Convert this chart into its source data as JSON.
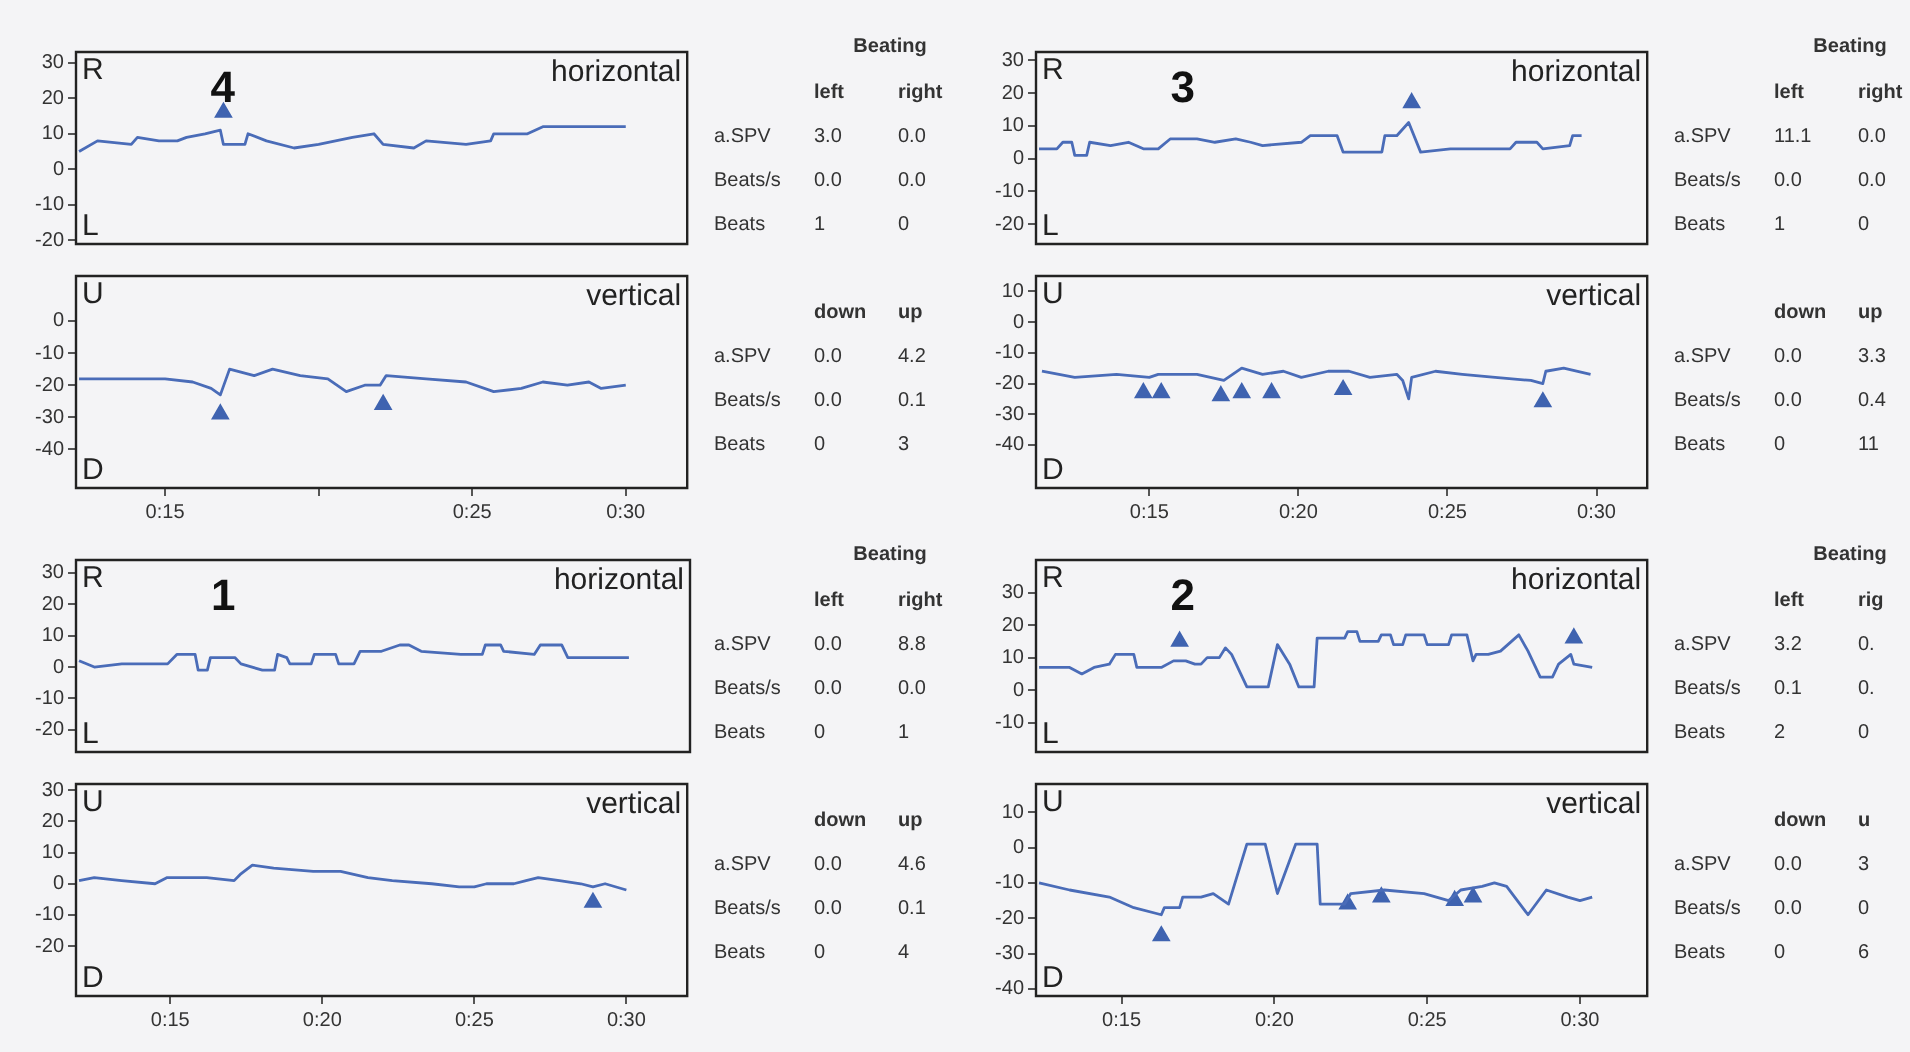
{
  "chart_data": [
    {
      "type": "line",
      "xlim": [
        12.1,
        32
      ],
      "ylim": [
        -21,
        33
      ],
      "yticks": [
        -20,
        -10,
        0,
        10,
        20,
        30
      ],
      "tick_labels": "y",
      "annotations": [
        "R",
        "L",
        "horizontal",
        "4"
      ],
      "series": [
        {
          "color": "#4a6cb8",
          "x": [
            12.2,
            12.8,
            13.9,
            14.1,
            14.8,
            15.4,
            15.7,
            16.3,
            16.8,
            16.9,
            17.6,
            17.7,
            18.3,
            19.2,
            20.0,
            21.1,
            21.8,
            22.1,
            23.1,
            23.5,
            24.8,
            25.6,
            25.7,
            26.8,
            27.3,
            30.0
          ],
          "values": [
            5,
            8,
            7,
            9,
            8,
            8,
            9,
            10,
            11,
            7,
            7,
            10,
            8,
            6,
            7,
            9,
            10,
            7,
            6,
            8,
            7,
            8,
            10,
            10,
            12,
            12
          ]
        },
        {
          "type": "scatter",
          "marker": "triangle",
          "color": "#3f63b0",
          "x": [
            16.9
          ],
          "values": [
            16
          ]
        }
      ]
    },
    {
      "type": "line",
      "xlim": [
        12.1,
        32
      ],
      "ylim": [
        -52,
        14
      ],
      "yticks": [
        -40,
        -30,
        -20,
        -10,
        0
      ],
      "xticks": [
        {
          "value": 15,
          "label": "0:15"
        },
        {
          "value": 20,
          "label": null
        },
        {
          "value": 25,
          "label": "0:25"
        },
        {
          "value": 30,
          "label": "0:30"
        }
      ],
      "annotations": [
        "U",
        "D",
        "vertical"
      ],
      "series": [
        {
          "color": "#4a6cb8",
          "x": [
            12.2,
            13.9,
            15,
            15.9,
            16.5,
            16.8,
            17.1,
            17.9,
            18.5,
            19.4,
            20.3,
            20.9,
            21.5,
            22.0,
            22.2,
            23.5,
            24.8,
            25.7,
            26.6,
            27.3,
            28.1,
            28.8,
            29.2,
            30.0
          ],
          "values": [
            -18,
            -18,
            -18,
            -19,
            -21,
            -23,
            -15,
            -17,
            -15,
            -17,
            -18,
            -22,
            -20,
            -20,
            -17,
            -18,
            -19,
            -22,
            -21,
            -19,
            -20,
            -19,
            -21,
            -20
          ]
        },
        {
          "type": "scatter",
          "marker": "triangle",
          "color": "#3f63b0",
          "x": [
            16.8,
            22.1
          ],
          "values": [
            -29,
            -26
          ]
        }
      ]
    },
    {
      "type": "other",
      "title": "Beating",
      "annotations": [
        "left",
        "right",
        "a.SPV",
        "3.0",
        "0.0",
        "Beats/s",
        "0.0",
        "0.0",
        "Beats",
        "1",
        "0",
        "down",
        "up",
        "a.SPV",
        "0.0",
        "4.2",
        "Beats/s",
        "0.0",
        "0.1",
        "Beats",
        "0",
        "3"
      ]
    },
    {
      "type": "line",
      "xlim": [
        11.2,
        31.7
      ],
      "ylim": [
        -26,
        32.5
      ],
      "yticks": [
        -20,
        -10,
        0,
        10,
        20,
        30
      ],
      "tick_labels": "y",
      "annotations": [
        "R",
        "L",
        "horizontal",
        "3"
      ],
      "series": [
        {
          "color": "#4a6cb8",
          "x": [
            11.3,
            11.9,
            12.1,
            12.4,
            12.5,
            12.9,
            13.0,
            13.7,
            14.3,
            14.8,
            15.3,
            15.7,
            16.6,
            17.2,
            17.9,
            18.4,
            18.8,
            20.1,
            20.4,
            21.3,
            21.5,
            22.8,
            22.9,
            23.3,
            23.7,
            24.1,
            25.1,
            26.0,
            27.1,
            27.3,
            28.0,
            28.2,
            29.1,
            29.2,
            29.5
          ],
          "values": [
            3,
            3,
            5,
            5,
            1,
            1,
            5,
            4,
            5,
            3,
            3,
            6,
            6,
            5,
            6,
            5,
            4,
            5,
            7,
            7,
            2,
            2,
            7,
            7,
            11,
            2,
            3,
            3,
            3,
            5,
            5,
            3,
            4,
            7,
            7
          ]
        },
        {
          "type": "scatter",
          "marker": "triangle",
          "color": "#3f63b0",
          "x": [
            23.8
          ],
          "values": [
            17
          ]
        }
      ]
    },
    {
      "type": "line",
      "xlim": [
        11.2,
        31.7
      ],
      "ylim": [
        -54,
        15
      ],
      "yticks": [
        -40,
        -30,
        -20,
        -10,
        0,
        10
      ],
      "xticks": [
        {
          "value": 15,
          "label": "0:15"
        },
        {
          "value": 20,
          "label": "0:20"
        },
        {
          "value": 25,
          "label": "0:25"
        },
        {
          "value": 30,
          "label": "0:30"
        }
      ],
      "annotations": [
        "U",
        "D",
        "vertical"
      ],
      "series": [
        {
          "color": "#4a6cb8",
          "x": [
            11.4,
            12.5,
            13.9,
            15,
            15.3,
            16.6,
            17.5,
            18.1,
            18.8,
            19.5,
            20.1,
            21.0,
            21.7,
            22.4,
            23.3,
            23.5,
            23.7,
            23.8,
            24.6,
            25.5,
            26.6,
            27.8,
            28.2,
            28.3,
            28.9,
            29.8
          ],
          "values": [
            -16,
            -18,
            -17,
            -18,
            -17,
            -17,
            -19,
            -15,
            -17,
            -16,
            -18,
            -16,
            -16,
            -18,
            -17,
            -19,
            -25,
            -18,
            -16,
            -17,
            -18,
            -19,
            -20,
            -16,
            -15,
            -17
          ]
        },
        {
          "type": "scatter",
          "marker": "triangle",
          "color": "#3f63b0",
          "x": [
            14.8,
            15.4,
            17.4,
            18.1,
            19.1,
            21.5,
            28.2
          ],
          "values": [
            -23,
            -23,
            -24,
            -23,
            -23,
            -22,
            -26
          ]
        }
      ]
    },
    {
      "type": "other",
      "title": "Beating",
      "annotations": [
        "left",
        "right",
        "a.SPV",
        "11.1",
        "0.0",
        "Beats/s",
        "0.0",
        "0.0",
        "Beats",
        "1",
        "0",
        "down",
        "up",
        "a.SPV",
        "0.0",
        "3.3",
        "Beats/s",
        "0.0",
        "0.4",
        "Beats",
        "0",
        "11"
      ]
    },
    {
      "type": "line",
      "xlim": [
        11.9,
        32
      ],
      "ylim": [
        -27,
        34
      ],
      "yticks": [
        -20,
        -10,
        0,
        10,
        20,
        30
      ],
      "tick_labels": "y",
      "annotations": [
        "R",
        "L",
        "horizontal",
        "1"
      ],
      "series": [
        {
          "color": "#4a6cb8",
          "x": [
            12.0,
            12.5,
            13.4,
            14.0,
            14.9,
            15.2,
            15.8,
            15.9,
            16.2,
            16.3,
            17.1,
            17.3,
            18.0,
            18.4,
            18.5,
            18.8,
            18.9,
            19.6,
            19.7,
            20.4,
            20.5,
            21.0,
            21.2,
            21.9,
            22.5,
            22.8,
            23.2,
            24.5,
            25.2,
            25.3,
            25.8,
            25.9,
            26.9,
            27.1,
            27.8,
            28.0,
            30.0
          ],
          "values": [
            2,
            0,
            1,
            1,
            1,
            4,
            4,
            -1,
            -1,
            3,
            3,
            1,
            -1,
            -1,
            4,
            3,
            1,
            1,
            4,
            4,
            1,
            1,
            5,
            5,
            7,
            7,
            5,
            4,
            4,
            7,
            7,
            5,
            4,
            7,
            7,
            3,
            3
          ]
        }
      ]
    },
    {
      "type": "line",
      "xlim": [
        11.9,
        32
      ],
      "ylim": [
        -36,
        32
      ],
      "yticks": [
        -20,
        -10,
        0,
        10,
        20,
        30
      ],
      "xticks": [
        {
          "value": 15,
          "label": "0:15"
        },
        {
          "value": 20,
          "label": "0:20"
        },
        {
          "value": 25,
          "label": "0:25"
        },
        {
          "value": 30,
          "label": "0:30"
        }
      ],
      "annotations": [
        "U",
        "D",
        "vertical"
      ],
      "series": [
        {
          "color": "#4a6cb8",
          "x": [
            12.0,
            12.5,
            13.4,
            14.5,
            14.9,
            16.2,
            17.1,
            17.3,
            17.7,
            18.4,
            19.7,
            20.6,
            21.5,
            22.3,
            23.6,
            24.5,
            25.0,
            25.4,
            26.3,
            26.7,
            27.1,
            27.8,
            28.5,
            28.9,
            29.3,
            30.0
          ],
          "values": [
            1,
            2,
            1,
            0,
            2,
            2,
            1,
            3,
            6,
            5,
            4,
            4,
            2,
            1,
            0,
            -1,
            -1,
            0,
            0,
            1,
            2,
            1,
            0,
            -1,
            0,
            -2
          ]
        },
        {
          "type": "scatter",
          "marker": "triangle",
          "color": "#3f63b0",
          "x": [
            28.9
          ],
          "values": [
            -6
          ]
        }
      ]
    },
    {
      "type": "other",
      "title": "Beating",
      "annotations": [
        "left",
        "right",
        "a.SPV",
        "0.0",
        "8.8",
        "Beats/s",
        "0.0",
        "0.0",
        "Beats",
        "0",
        "1",
        "down",
        "up",
        "a.SPV",
        "0.0",
        "4.6",
        "Beats/s",
        "0.0",
        "0.1",
        "Beats",
        "0",
        "4"
      ]
    },
    {
      "type": "line",
      "xlim": [
        12.2,
        32.2
      ],
      "ylim": [
        -19,
        40
      ],
      "yticks": [
        -10,
        0,
        10,
        20,
        30
      ],
      "tick_labels": "y",
      "annotations": [
        "R",
        "L",
        "horizontal",
        "2"
      ],
      "series": [
        {
          "color": "#4a6cb8",
          "x": [
            12.3,
            13.3,
            13.7,
            14.1,
            14.6,
            14.8,
            15.4,
            15.5,
            16.3,
            16.7,
            17.1,
            17.4,
            17.6,
            17.8,
            18.2,
            18.4,
            18.6,
            18.9,
            19.1,
            19.8,
            20.1,
            20.5,
            20.8,
            21.3,
            21.4,
            22.3,
            22.4,
            22.7,
            22.8,
            23.4,
            23.5,
            23.8,
            23.9,
            24.2,
            24.3,
            24.9,
            25.0,
            25.7,
            25.8,
            26.3,
            26.5,
            26.6,
            27.0,
            27.4,
            28.0,
            28.3,
            28.7,
            29.1,
            29.3,
            29.7,
            29.8,
            30.4
          ],
          "values": [
            7,
            7,
            5,
            7,
            8,
            11,
            11,
            7,
            7,
            9,
            9,
            8,
            8,
            10,
            10,
            13,
            11,
            5,
            1,
            1,
            14,
            8,
            1,
            1,
            16,
            16,
            18,
            18,
            15,
            15,
            17,
            17,
            14,
            14,
            17,
            17,
            14,
            14,
            17,
            17,
            9,
            11,
            11,
            12,
            17,
            12,
            4,
            4,
            8,
            11,
            8,
            7
          ]
        },
        {
          "type": "scatter",
          "marker": "triangle",
          "color": "#3f63b0",
          "x": [
            16.9,
            29.8
          ],
          "values": [
            15,
            16
          ]
        }
      ]
    },
    {
      "type": "line",
      "xlim": [
        12.2,
        32.2
      ],
      "ylim": [
        -42,
        18
      ],
      "yticks": [
        -40,
        -30,
        -20,
        -10,
        0,
        10
      ],
      "xticks": [
        {
          "value": 15,
          "label": "0:15"
        },
        {
          "value": 20,
          "label": "0:20"
        },
        {
          "value": 25,
          "label": "0:25"
        },
        {
          "value": 30,
          "label": "0:30"
        }
      ],
      "annotations": [
        "U",
        "D",
        "vertical"
      ],
      "series": [
        {
          "color": "#4a6cb8",
          "x": [
            12.3,
            13.3,
            14.6,
            15.4,
            16.3,
            16.4,
            16.9,
            17.0,
            17.6,
            18.0,
            18.5,
            19.1,
            19.7,
            20.1,
            20.7,
            21.4,
            21.5,
            22.3,
            22.5,
            23.6,
            24.9,
            25.7,
            26.1,
            26.8,
            27.2,
            27.6,
            28.3,
            28.9,
            29.6,
            30.0,
            30.4
          ],
          "values": [
            -10,
            -12,
            -14,
            -17,
            -19,
            -17,
            -17,
            -14,
            -14,
            -13,
            -16,
            1,
            1,
            -13,
            1,
            1,
            -16,
            -16,
            -13,
            -12,
            -13,
            -15,
            -12,
            -11,
            -10,
            -11,
            -19,
            -12,
            -14,
            -15,
            -14
          ]
        },
        {
          "type": "scatter",
          "marker": "triangle",
          "color": "#3f63b0",
          "x": [
            16.3,
            22.4,
            23.5,
            25.9,
            26.5
          ],
          "values": [
            -25,
            -16,
            -14,
            -15,
            -14
          ]
        }
      ]
    },
    {
      "type": "other",
      "title": "Beating",
      "annotations": [
        "left",
        "rig",
        "a.SPV",
        "3.2",
        "0.",
        "Beats/s",
        "0.1",
        "0.",
        "Beats",
        "2",
        "0",
        "down",
        "u",
        "a.SPV",
        "0.0",
        "3",
        "Beats/s",
        "0.0",
        "0",
        "Beats",
        "0",
        "6"
      ]
    }
  ]
}
